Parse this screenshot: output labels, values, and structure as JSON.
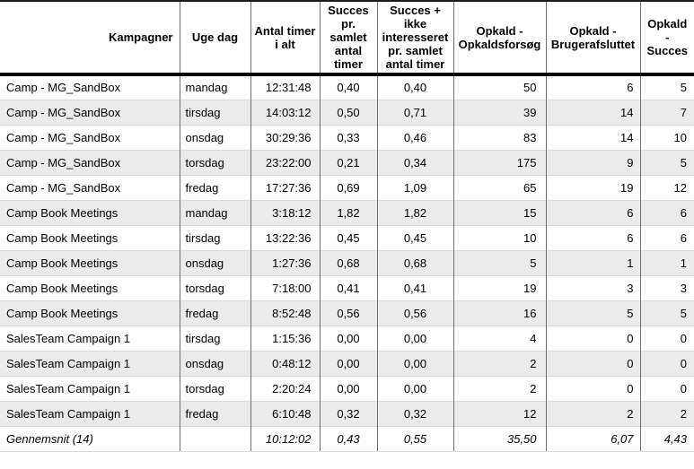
{
  "colors": {
    "stripe_row": "#ebebeb",
    "column_border": "#6f6f6f",
    "row_separator": "#d9d9d9",
    "header_rule": "#000000",
    "text": "#000000"
  },
  "table": {
    "columns": [
      {
        "id": "kampagner",
        "label": "Kampagner"
      },
      {
        "id": "uge-dag",
        "label": "Uge dag"
      },
      {
        "id": "antal-timer-i-alt",
        "label": "Antal timer\ni alt"
      },
      {
        "id": "succes-pr-samlet-antal-timer",
        "label": "Succes\npr.\nsamlet\nantal\ntimer"
      },
      {
        "id": "succes-ikke-interesseret-pr-samlet-antal-timer",
        "label": "Succes +\nikke\ninteresseret\npr. samlet\nantal timer"
      },
      {
        "id": "opkald-opkaldsforsoeg",
        "label": "Opkald -\nOpkaldsforsøg"
      },
      {
        "id": "opkald-brugerafsluttet",
        "label": "Opkald -\nBrugerafsluttet"
      },
      {
        "id": "opkald-succes",
        "label": "Opkald\n-\nSucces"
      }
    ],
    "rows": [
      [
        "Camp - MG_SandBox",
        "mandag",
        "12:31:48",
        "0,40",
        "0,40",
        "50",
        "6",
        "5"
      ],
      [
        "Camp - MG_SandBox",
        "tirsdag",
        "14:03:12",
        "0,50",
        "0,71",
        "39",
        "14",
        "7"
      ],
      [
        "Camp - MG_SandBox",
        "onsdag",
        "30:29:36",
        "0,33",
        "0,46",
        "83",
        "14",
        "10"
      ],
      [
        "Camp - MG_SandBox",
        "torsdag",
        "23:22:00",
        "0,21",
        "0,34",
        "175",
        "9",
        "5"
      ],
      [
        "Camp - MG_SandBox",
        "fredag",
        "17:27:36",
        "0,69",
        "1,09",
        "65",
        "19",
        "12"
      ],
      [
        "Camp Book Meetings",
        "mandag",
        "3:18:12",
        "1,82",
        "1,82",
        "15",
        "6",
        "6"
      ],
      [
        "Camp Book Meetings",
        "tirsdag",
        "13:22:36",
        "0,45",
        "0,45",
        "10",
        "6",
        "6"
      ],
      [
        "Camp Book Meetings",
        "onsdag",
        "1:27:36",
        "0,68",
        "0,68",
        "5",
        "1",
        "1"
      ],
      [
        "Camp Book Meetings",
        "torsdag",
        "7:18:00",
        "0,41",
        "0,41",
        "19",
        "3",
        "3"
      ],
      [
        "Camp Book Meetings",
        "fredag",
        "8:52:48",
        "0,56",
        "0,56",
        "16",
        "5",
        "5"
      ],
      [
        "SalesTeam Campaign 1",
        "tirsdag",
        "1:15:36",
        "0,00",
        "0,00",
        "4",
        "0",
        "0"
      ],
      [
        "SalesTeam Campaign 1",
        "onsdag",
        "0:48:12",
        "0,00",
        "0,00",
        "2",
        "0",
        "0"
      ],
      [
        "SalesTeam Campaign 1",
        "torsdag",
        "2:20:24",
        "0,00",
        "0,00",
        "2",
        "0",
        "0"
      ],
      [
        "SalesTeam Campaign 1",
        "fredag",
        "6:10:48",
        "0,32",
        "0,32",
        "12",
        "2",
        "2"
      ]
    ],
    "summary_row": [
      "Gennemsnit (14)",
      "",
      "10:12:02",
      "0,43",
      "0,55",
      "35,50",
      "6,07",
      "4,43"
    ]
  }
}
